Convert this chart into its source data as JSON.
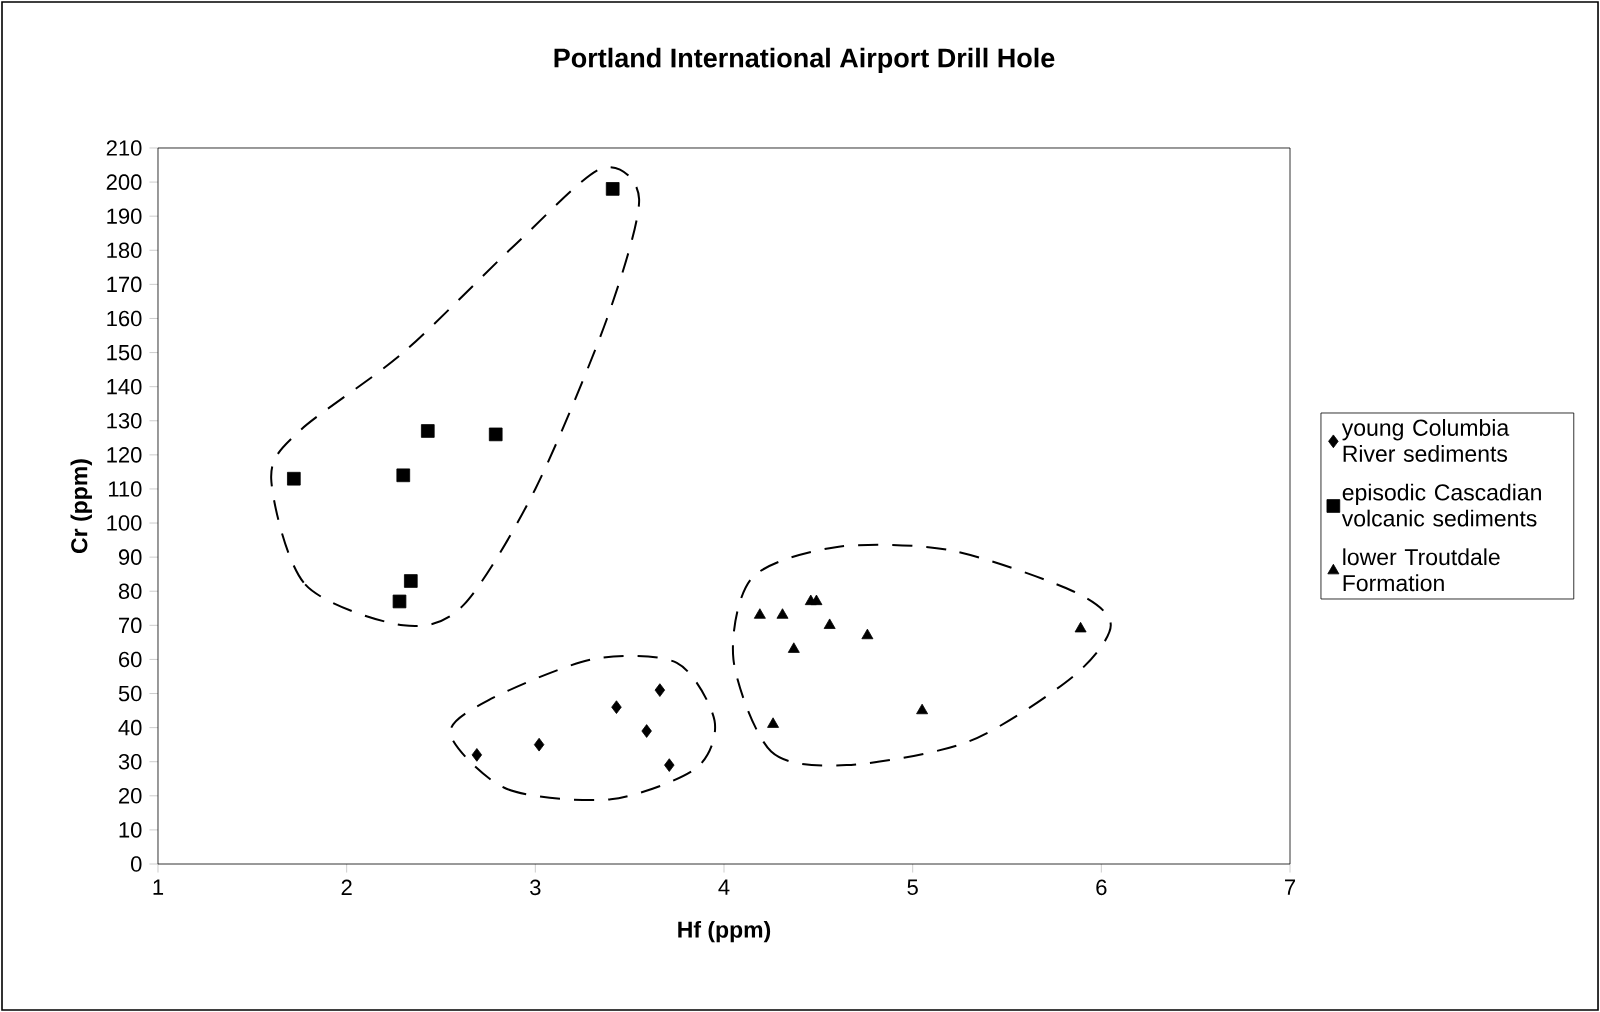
{
  "chart_data": {
    "type": "scatter",
    "title": "Portland International Airport Drill Hole",
    "xlabel": "Hf (ppm)",
    "ylabel": "Cr (ppm)",
    "xlim": [
      1,
      7
    ],
    "xticks": [
      1,
      2,
      3,
      4,
      5,
      6,
      7
    ],
    "ylim": [
      0,
      210
    ],
    "yticks": [
      0,
      10,
      20,
      30,
      40,
      50,
      60,
      70,
      80,
      90,
      100,
      110,
      120,
      130,
      140,
      150,
      160,
      170,
      180,
      190,
      200,
      210
    ],
    "grid": false,
    "legend": "right",
    "series": [
      {
        "name": "young Columbia River sediments",
        "color": "#000000",
        "marker": "diamond",
        "x": [
          2.69,
          3.02,
          3.43,
          3.66,
          3.59,
          3.71
        ],
        "values": [
          32,
          35,
          46,
          51,
          39,
          29
        ]
      },
      {
        "name": "episodic Cascadian volcanic sediments",
        "color": "#000000",
        "marker": "square",
        "x": [
          1.72,
          2.3,
          2.43,
          2.79,
          2.34,
          2.28,
          3.41
        ],
        "values": [
          113,
          114,
          127,
          126,
          83,
          77,
          198
        ]
      },
      {
        "name": "lower Troutdale Formation",
        "color": "#000000",
        "marker": "triangle",
        "x": [
          4.19,
          4.31,
          4.37,
          4.46,
          4.49,
          4.56,
          4.76,
          4.26,
          5.05,
          5.89
        ],
        "values": [
          73,
          73,
          63,
          77,
          77,
          70,
          67,
          41,
          45,
          69
        ]
      }
    ]
  }
}
